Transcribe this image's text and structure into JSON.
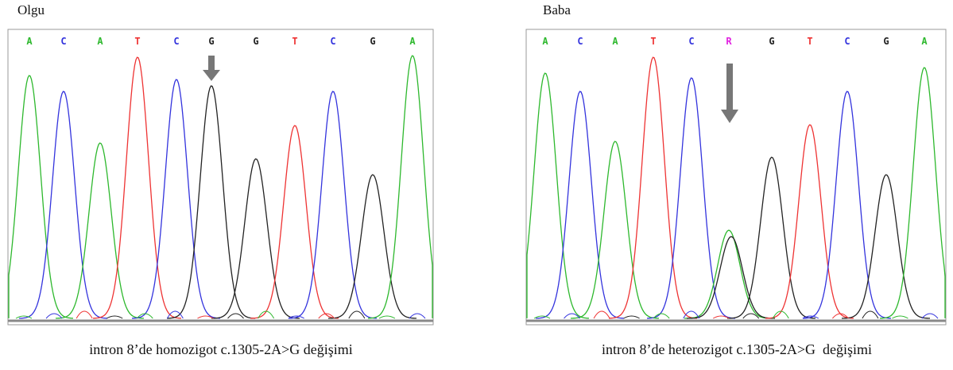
{
  "panels": [
    {
      "label": "Olgu",
      "bases": [
        "A",
        "C",
        "A",
        "T",
        "C",
        "G",
        "G",
        "T",
        "C",
        "G",
        "A"
      ],
      "caption": "intron 8’de homozigot c.1305-2A>G değişimi"
    },
    {
      "label": "Baba",
      "bases": [
        "A",
        "C",
        "A",
        "T",
        "C",
        "R",
        "G",
        "T",
        "C",
        "G",
        "A"
      ],
      "caption": "intron 8’de heterozigot c.1305-2A>G  değişimi"
    }
  ]
}
